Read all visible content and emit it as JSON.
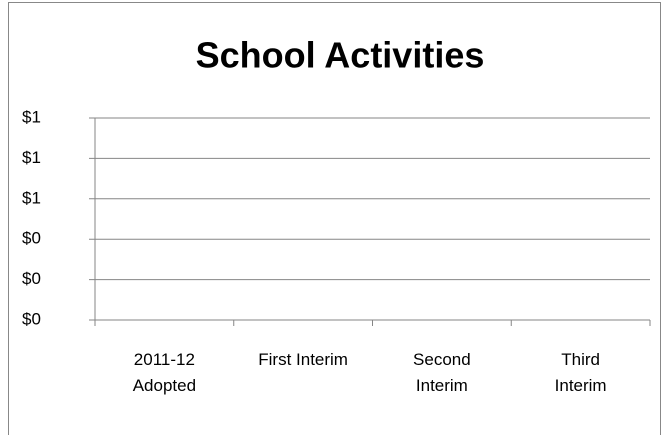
{
  "chart_data": {
    "type": "bar",
    "title": "School Activities",
    "categories": [
      "2011-12\nAdopted",
      "First Interim",
      "Second\nInterim",
      "Third\nInterim"
    ],
    "values": [
      0,
      0,
      0,
      0
    ],
    "color": "#4f81bd",
    "ylim": [
      0,
      1
    ],
    "yticks": [
      {
        "value": 0,
        "label": "$0"
      },
      {
        "value": 0.2,
        "label": "$0"
      },
      {
        "value": 0.4,
        "label": "$0"
      },
      {
        "value": 0.6,
        "label": "$1"
      },
      {
        "value": 0.8,
        "label": "$1"
      },
      {
        "value": 1,
        "label": "$1"
      }
    ],
    "grid": true
  }
}
